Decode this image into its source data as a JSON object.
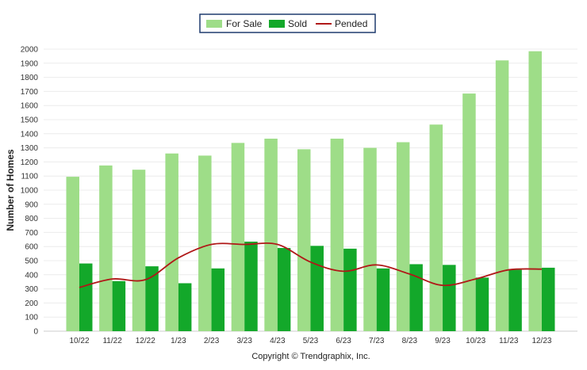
{
  "chart_data": {
    "type": "bar",
    "title": "",
    "xlabel": "",
    "ylabel": "Number of Homes",
    "ylim": [
      0,
      2000
    ],
    "ytick_step": 100,
    "grid": true,
    "legend_position": "top-center",
    "categories": [
      "10/22",
      "11/22",
      "12/22",
      "1/23",
      "2/23",
      "3/23",
      "4/23",
      "5/23",
      "6/23",
      "7/23",
      "8/23",
      "9/23",
      "10/23",
      "11/23",
      "12/23"
    ],
    "series": [
      {
        "name": "For Sale",
        "type": "bar",
        "color": "#9edd88",
        "values": [
          1095,
          1175,
          1145,
          1260,
          1245,
          1335,
          1365,
          1290,
          1365,
          1300,
          1340,
          1465,
          1685,
          1920,
          1985
        ]
      },
      {
        "name": "Sold",
        "type": "bar",
        "color": "#13a82a",
        "values": [
          480,
          355,
          460,
          340,
          445,
          635,
          590,
          605,
          585,
          445,
          475,
          470,
          380,
          435,
          450
        ]
      },
      {
        "name": "Pended",
        "type": "line",
        "color": "#b01818",
        "values": [
          310,
          370,
          365,
          520,
          615,
          615,
          615,
          490,
          425,
          470,
          405,
          325,
          370,
          435,
          440
        ]
      }
    ]
  },
  "copyright": "Copyright © Trendgraphix, Inc."
}
